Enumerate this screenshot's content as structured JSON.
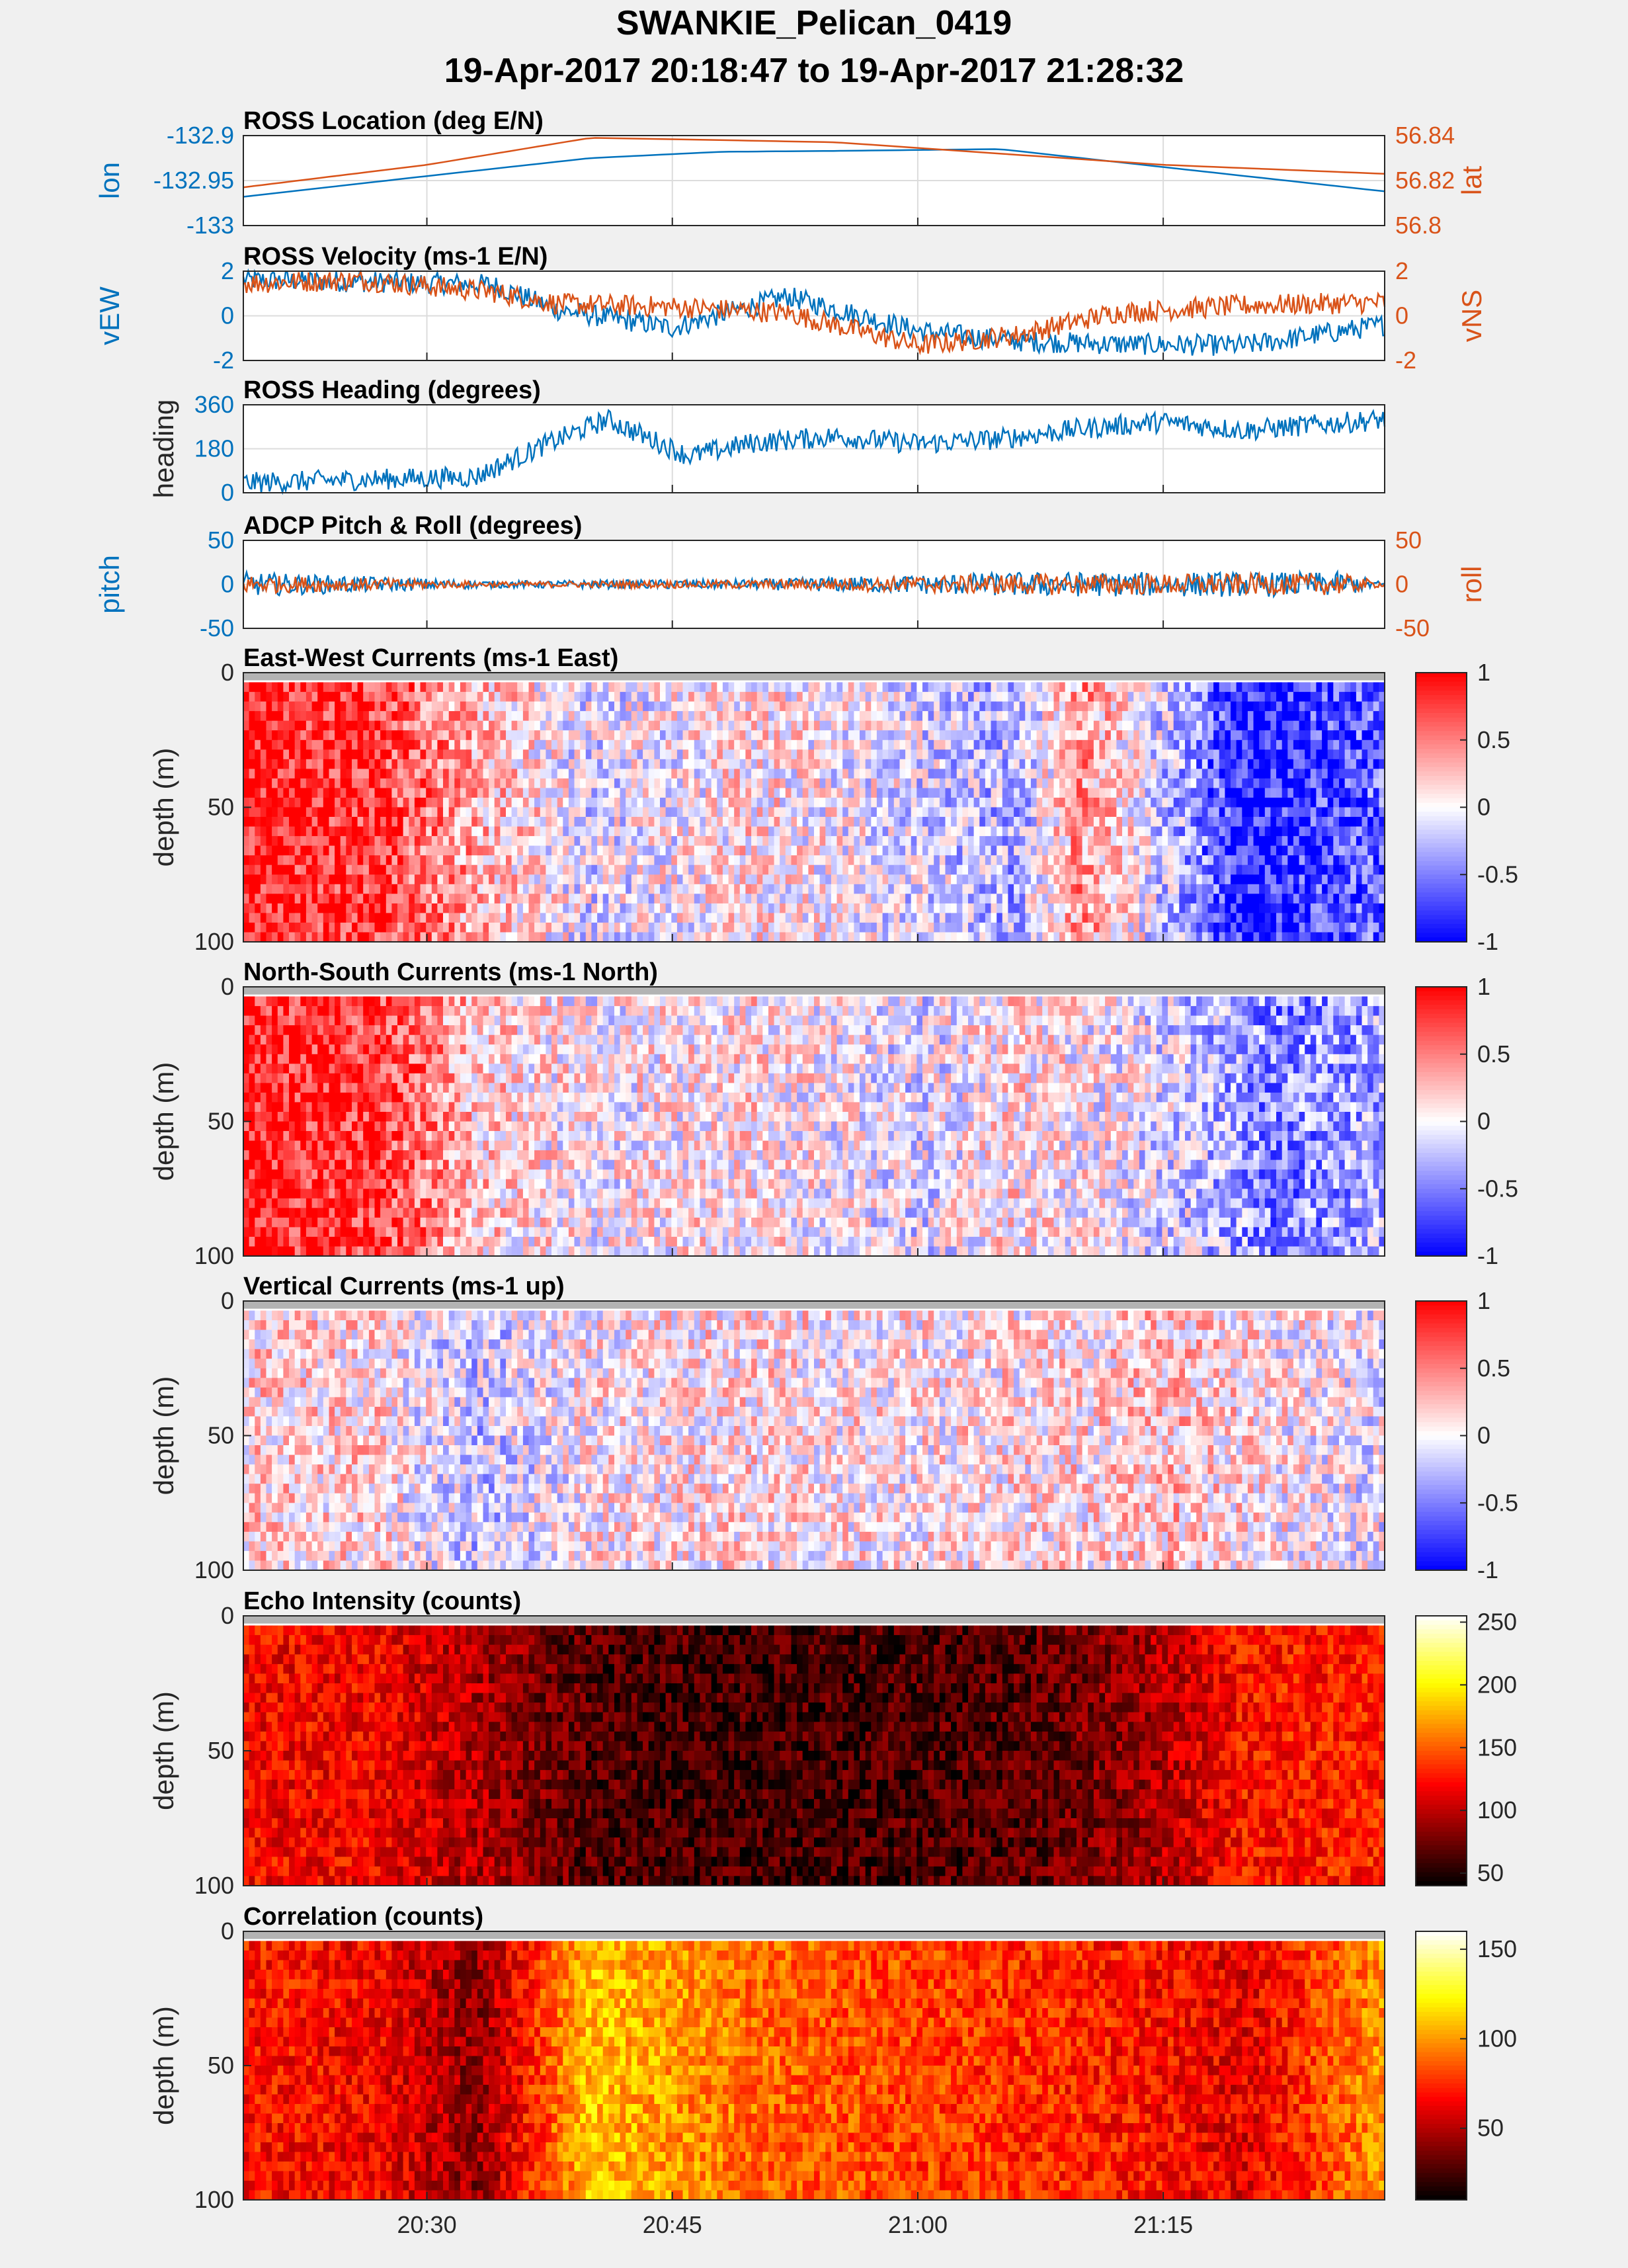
{
  "figure": {
    "title": "SWANKIE_Pelican_0419",
    "subtitle": "19-Apr-2017 20:18:47 to 19-Apr-2017 21:28:32"
  },
  "colors": {
    "left_axis": "#0072bd",
    "right_axis": "#d95319",
    "background": "#f0f0f0",
    "nan": "#b3b3b3"
  },
  "chart_data": [
    {
      "type": "line",
      "title": "ROSS Location (deg E/N)",
      "ylabel": "lon",
      "ylabel_right": "lat",
      "ylim": [
        -133,
        -132.9
      ],
      "ylim_right": [
        56.8,
        56.84
      ],
      "yticks": [
        "-132.9",
        "-132.95",
        "-133"
      ],
      "yticks_right": [
        "56.84",
        "56.82",
        "56.8"
      ],
      "x": [
        "20:18:47",
        "20:30",
        "20:40",
        "20:48",
        "20:55",
        "21:05",
        "21:15",
        "21:28:32"
      ],
      "series": [
        {
          "name": "lon",
          "axis": "left",
          "values": [
            -132.968,
            -132.945,
            -132.925,
            -132.918,
            -132.917,
            -132.915,
            -132.935,
            -132.962
          ]
        },
        {
          "name": "lat",
          "axis": "right",
          "values": [
            56.817,
            56.827,
            56.839,
            56.838,
            56.837,
            56.832,
            56.827,
            56.823
          ]
        }
      ]
    },
    {
      "type": "line",
      "title": "ROSS Velocity (ms-1 E/N)",
      "ylabel": "vEW",
      "ylabel_right": "vNS",
      "ylim": [
        -3,
        3
      ],
      "ylim_right": [
        -3,
        3
      ],
      "yticks": [
        "2",
        "0",
        "-2"
      ],
      "yticks_right": [
        "2",
        "0",
        "-2"
      ],
      "x": [
        "20:18:47",
        "20:26",
        "20:34",
        "20:38",
        "20:45",
        "20:52",
        "21:00",
        "21:06",
        "21:12",
        "21:20",
        "21:28:32"
      ],
      "series": [
        {
          "name": "vEW",
          "axis": "left",
          "values": [
            2.4,
            2.3,
            2.1,
            0.4,
            -0.8,
            1.3,
            -1.0,
            -1.7,
            -1.9,
            -2.0,
            -0.6
          ]
        },
        {
          "name": "vNS",
          "axis": "right",
          "values": [
            2.2,
            2.4,
            1.6,
            0.8,
            0.6,
            0.2,
            -2.0,
            -1.3,
            0.2,
            0.7,
            0.9
          ]
        }
      ]
    },
    {
      "type": "line",
      "title": "ROSS Heading (degrees)",
      "ylabel": "heading",
      "ylim": [
        0,
        360
      ],
      "yticks": [
        "360",
        "180",
        "0"
      ],
      "x": [
        "20:18:47",
        "20:25",
        "20:33",
        "20:37",
        "20:41",
        "20:46",
        "20:50",
        "20:55",
        "21:00",
        "21:05",
        "21:10",
        "21:15",
        "21:20",
        "21:28:32"
      ],
      "series": [
        {
          "name": "heading",
          "axis": "left",
          "values": [
            40,
            52,
            65,
            190,
            300,
            150,
            205,
            230,
            200,
            220,
            262,
            290,
            255,
            300
          ]
        }
      ]
    },
    {
      "type": "line",
      "title": "ADCP Pitch & Roll (degrees)",
      "ylabel": "pitch",
      "ylabel_right": "roll",
      "ylim": [
        -50,
        50
      ],
      "ylim_right": [
        -50,
        50
      ],
      "yticks": [
        "50",
        "0",
        "-50"
      ],
      "yticks_right": [
        "50",
        "0",
        "-50"
      ],
      "x": [
        "20:18:47",
        "20:34",
        "20:50",
        "21:06",
        "21:26",
        "21:28:32"
      ],
      "series": [
        {
          "name": "pitch",
          "axis": "left",
          "values": [
            0,
            0,
            0,
            0,
            0,
            0
          ],
          "spread": [
            14,
            4,
            6,
            14,
            14,
            2
          ]
        },
        {
          "name": "roll",
          "axis": "right",
          "values": [
            0,
            0,
            0,
            0,
            0,
            0
          ],
          "spread": [
            11,
            3,
            5,
            12,
            12,
            2
          ]
        }
      ]
    },
    {
      "type": "heatmap",
      "title": "East-West Currents (ms-1 East)",
      "ylabel": "depth (m)",
      "ylim": [
        100,
        0
      ],
      "yticks": [
        "0",
        "50",
        "100"
      ],
      "clim": [
        -1,
        1
      ],
      "colorbar_ticks": [
        "1",
        "0.5",
        "0",
        "-0.5",
        "-1"
      ],
      "colormap": "blue-white-red",
      "profile_time": [
        "20:18:47",
        "20:27",
        "20:33",
        "20:40",
        "20:50",
        "21:00",
        "21:06",
        "21:10",
        "21:16",
        "21:20",
        "21:28:32"
      ],
      "profile_value": [
        0.9,
        0.8,
        0.3,
        -0.1,
        0.1,
        -0.1,
        -0.3,
        0.4,
        -0.3,
        -0.9,
        -0.6
      ]
    },
    {
      "type": "heatmap",
      "title": "North-South Currents (ms-1 North)",
      "ylabel": "depth (m)",
      "ylim": [
        100,
        0
      ],
      "yticks": [
        "0",
        "50",
        "100"
      ],
      "clim": [
        -1,
        1
      ],
      "colorbar_ticks": [
        "1",
        "0.5",
        "0",
        "-0.5",
        "-1"
      ],
      "colormap": "blue-white-red",
      "profile_time": [
        "20:18:47",
        "20:27",
        "20:33",
        "20:40",
        "20:50",
        "21:00",
        "21:06",
        "21:12",
        "21:17",
        "21:22",
        "21:28:32"
      ],
      "profile_value": [
        0.9,
        0.8,
        0.2,
        0.0,
        0.1,
        -0.1,
        0.1,
        0.0,
        -0.2,
        -0.5,
        -0.3
      ]
    },
    {
      "type": "heatmap",
      "title": "Vertical Currents (ms-1 up)",
      "ylabel": "depth (m)",
      "ylim": [
        100,
        0
      ],
      "yticks": [
        "0",
        "50",
        "100"
      ],
      "clim": [
        -1,
        1
      ],
      "colorbar_ticks": [
        "1",
        "0.5",
        "0",
        "-0.5",
        "-1"
      ],
      "colormap": "blue-white-red",
      "profile_time": [
        "20:18:47",
        "20:27",
        "20:33",
        "20:40",
        "20:50",
        "21:00",
        "21:10",
        "21:16",
        "21:22",
        "21:28:32"
      ],
      "profile_value": [
        0.15,
        0.12,
        -0.2,
        0.05,
        0.1,
        0.05,
        0.1,
        0.2,
        0.05,
        -0.05
      ]
    },
    {
      "type": "heatmap",
      "title": "Echo Intensity (counts)",
      "ylabel": "depth (m)",
      "ylim": [
        100,
        0
      ],
      "yticks": [
        "0",
        "50",
        "100"
      ],
      "clim": [
        40,
        255
      ],
      "colorbar_ticks": [
        "250",
        "200",
        "150",
        "100",
        "50"
      ],
      "colormap": "hot",
      "profile_time": [
        "20:18:47",
        "20:27",
        "20:33",
        "20:40",
        "20:50",
        "21:00",
        "21:08",
        "21:14",
        "21:20",
        "21:28:32"
      ],
      "profile_value": [
        120,
        118,
        95,
        65,
        60,
        62,
        70,
        90,
        125,
        130
      ]
    },
    {
      "type": "heatmap",
      "title": "Correlation (counts)",
      "ylabel": "depth (m)",
      "ylim": [
        100,
        0
      ],
      "yticks": [
        "0",
        "50",
        "100"
      ],
      "clim": [
        10,
        160
      ],
      "colorbar_ticks": [
        "150",
        "100",
        "50"
      ],
      "colormap": "hot",
      "profile_time": [
        "20:18:47",
        "20:27",
        "20:33",
        "20:40",
        "20:50",
        "21:00",
        "21:08",
        "21:14",
        "21:20",
        "21:28:32"
      ],
      "profile_value": [
        70,
        65,
        40,
        110,
        90,
        80,
        75,
        70,
        60,
        100
      ]
    }
  ],
  "xaxis": {
    "tick_labels": [
      "20:30",
      "20:45",
      "21:00",
      "21:15"
    ],
    "tick_times": [
      "20:30",
      "20:45",
      "21:00",
      "21:15"
    ],
    "start": "20:18:47",
    "end": "21:28:32"
  }
}
